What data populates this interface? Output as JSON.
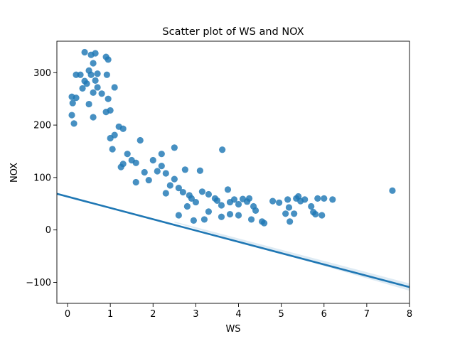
{
  "chart_data": {
    "type": "scatter",
    "title": "Scatter plot of WS and NOX",
    "xlabel": "WS",
    "ylabel": "NOX",
    "xlim": [
      -0.25,
      8
    ],
    "ylim": [
      -140,
      360
    ],
    "xticks": [
      "0",
      "1",
      "2",
      "3",
      "4",
      "5",
      "6",
      "7",
      "8"
    ],
    "yticks": [
      "−100",
      "0",
      "100",
      "200",
      "300"
    ],
    "grid": false,
    "legend": "none",
    "point_color": "#1f77b4",
    "line_color": "#1f77b4",
    "regression_line": {
      "x": [
        -0.25,
        8
      ],
      "y": [
        69,
        -109
      ]
    },
    "regression_ci_band": {
      "x": [
        2.5,
        8
      ],
      "y_lower": [
        14,
        -116
      ],
      "y_upper": [
        16,
        -102
      ]
    },
    "points": [
      [
        0.4,
        339
      ],
      [
        0.65,
        337
      ],
      [
        0.55,
        334
      ],
      [
        0.95,
        325
      ],
      [
        0.9,
        330
      ],
      [
        0.2,
        296
      ],
      [
        0.3,
        296
      ],
      [
        0.5,
        304
      ],
      [
        0.7,
        298
      ],
      [
        0.55,
        296
      ],
      [
        0.92,
        296
      ],
      [
        0.1,
        254
      ],
      [
        0.2,
        252
      ],
      [
        0.6,
        262
      ],
      [
        0.8,
        260
      ],
      [
        0.95,
        250
      ],
      [
        1.1,
        272
      ],
      [
        0.4,
        284
      ],
      [
        0.45,
        279
      ],
      [
        0.65,
        285
      ],
      [
        0.35,
        270
      ],
      [
        0.7,
        272
      ],
      [
        0.1,
        219
      ],
      [
        0.12,
        242
      ],
      [
        0.15,
        203
      ],
      [
        0.5,
        240
      ],
      [
        0.6,
        215
      ],
      [
        1.0,
        228
      ],
      [
        0.9,
        225
      ],
      [
        1.2,
        197
      ],
      [
        1.3,
        193
      ],
      [
        1.1,
        181
      ],
      [
        1.0,
        175
      ],
      [
        1.4,
        145
      ],
      [
        1.7,
        171
      ],
      [
        1.05,
        154
      ],
      [
        1.5,
        133
      ],
      [
        1.3,
        126
      ],
      [
        1.6,
        128
      ],
      [
        1.8,
        110
      ],
      [
        2.0,
        133
      ],
      [
        2.2,
        145
      ],
      [
        2.5,
        157
      ],
      [
        2.2,
        122
      ],
      [
        2.1,
        112
      ],
      [
        2.3,
        108
      ],
      [
        2.5,
        97
      ],
      [
        2.4,
        85
      ],
      [
        2.6,
        80
      ],
      [
        2.75,
        115
      ],
      [
        3.1,
        113
      ],
      [
        2.7,
        72
      ],
      [
        2.85,
        66
      ],
      [
        2.9,
        60
      ],
      [
        3.0,
        53
      ],
      [
        3.15,
        73
      ],
      [
        3.3,
        68
      ],
      [
        3.45,
        60
      ],
      [
        3.5,
        56
      ],
      [
        3.6,
        47
      ],
      [
        3.62,
        153
      ],
      [
        3.75,
        77
      ],
      [
        3.8,
        53
      ],
      [
        3.9,
        58
      ],
      [
        4.0,
        49
      ],
      [
        4.1,
        59
      ],
      [
        4.2,
        54
      ],
      [
        4.25,
        60
      ],
      [
        4.35,
        45
      ],
      [
        4.4,
        37
      ],
      [
        4.55,
        16
      ],
      [
        4.6,
        13
      ],
      [
        4.8,
        55
      ],
      [
        4.95,
        52
      ],
      [
        5.15,
        58
      ],
      [
        5.18,
        43
      ],
      [
        5.35,
        60
      ],
      [
        5.4,
        64
      ],
      [
        5.45,
        55
      ],
      [
        5.55,
        58
      ],
      [
        5.7,
        45
      ],
      [
        5.75,
        34
      ],
      [
        5.8,
        30
      ],
      [
        5.85,
        60
      ],
      [
        5.95,
        28
      ],
      [
        6.0,
        60
      ],
      [
        6.2,
        58
      ],
      [
        7.6,
        75
      ],
      [
        5.1,
        31
      ],
      [
        5.2,
        16
      ],
      [
        5.3,
        31
      ],
      [
        4.0,
        28
      ],
      [
        4.3,
        20
      ],
      [
        3.8,
        30
      ],
      [
        3.6,
        25
      ],
      [
        3.3,
        35
      ],
      [
        3.2,
        20
      ],
      [
        2.95,
        18
      ],
      [
        2.8,
        45
      ],
      [
        2.6,
        28
      ],
      [
        0.6,
        318
      ],
      [
        1.25,
        120
      ],
      [
        1.6,
        91
      ],
      [
        1.9,
        95
      ],
      [
        2.3,
        70
      ]
    ]
  }
}
